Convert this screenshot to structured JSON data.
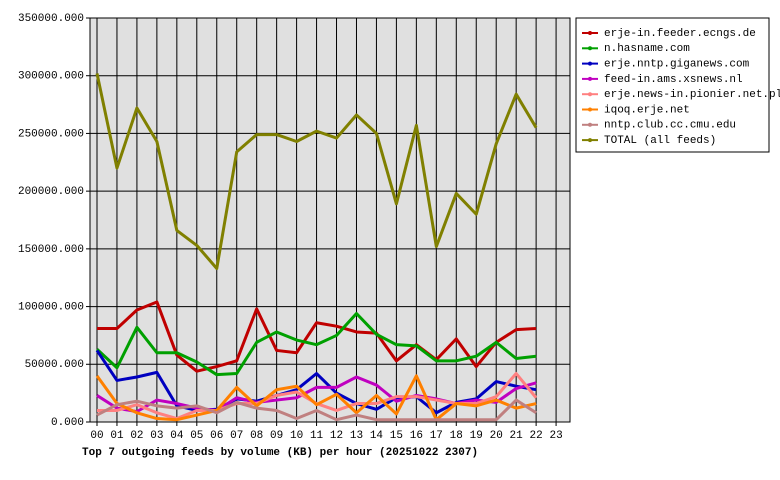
{
  "chart_data": {
    "type": "line",
    "title": "Top 7 outgoing feeds by volume (KB) per hour (20251022 2307)",
    "categories": [
      "00",
      "01",
      "02",
      "03",
      "04",
      "05",
      "06",
      "07",
      "08",
      "09",
      "10",
      "11",
      "12",
      "13",
      "14",
      "15",
      "16",
      "17",
      "18",
      "19",
      "20",
      "21",
      "22",
      "23"
    ],
    "ylim": [
      0,
      350000
    ],
    "yticks": [
      {
        "value": 0,
        "label": "0.000"
      },
      {
        "value": 50000,
        "label": "50000.000"
      },
      {
        "value": 100000,
        "label": "100000.000"
      },
      {
        "value": 150000,
        "label": "150000.000"
      },
      {
        "value": 200000,
        "label": "200000.000"
      },
      {
        "value": 250000,
        "label": "250000.000"
      },
      {
        "value": 300000,
        "label": "300000.000"
      },
      {
        "value": 350000,
        "label": "350000.000"
      }
    ],
    "grid": true,
    "legend": "right",
    "series": [
      {
        "name": "erje-in.feeder.ecngs.de",
        "color": "#c00000",
        "values": [
          81000,
          81000,
          97000,
          104000,
          58000,
          44000,
          48000,
          53000,
          98000,
          62000,
          60000,
          86000,
          83000,
          78000,
          77000,
          53000,
          67000,
          54000,
          72000,
          48000,
          69000,
          80000,
          81000,
          null
        ]
      },
      {
        "name": "n.hasname.com",
        "color": "#00a000",
        "values": [
          63000,
          47000,
          82000,
          60000,
          60000,
          52000,
          41000,
          42000,
          69000,
          78000,
          71000,
          67000,
          75000,
          94000,
          76000,
          67000,
          66000,
          53000,
          53000,
          57000,
          69000,
          55000,
          57000,
          null
        ]
      },
      {
        "name": "erje.nntp.giganews.com",
        "color": "#0000c0",
        "values": [
          62000,
          36000,
          39000,
          43000,
          14000,
          10000,
          11000,
          20000,
          18000,
          23000,
          28000,
          42000,
          25000,
          16000,
          11000,
          21000,
          22000,
          8000,
          17000,
          20000,
          35000,
          31000,
          28000,
          null
        ]
      },
      {
        "name": "feed-in.ams.xsnews.nl",
        "color": "#c000c0",
        "values": [
          23000,
          12000,
          9000,
          19000,
          16000,
          12000,
          10000,
          21000,
          17000,
          19000,
          21000,
          30000,
          30000,
          39000,
          32000,
          18000,
          23000,
          20000,
          16000,
          19000,
          17000,
          29000,
          34000,
          null
        ]
      },
      {
        "name": "erje.news-in.pionier.net.pl",
        "color": "#ff8080",
        "values": [
          10000,
          10000,
          15000,
          8000,
          3000,
          10000,
          10000,
          16000,
          16000,
          23000,
          26000,
          16000,
          10000,
          16000,
          16000,
          22000,
          22000,
          19000,
          16000,
          16000,
          22000,
          42000,
          21000,
          null
        ]
      },
      {
        "name": "iqoq.erje.net",
        "color": "#ff8000",
        "values": [
          40000,
          16000,
          8000,
          3000,
          2000,
          6000,
          10000,
          30000,
          14000,
          28000,
          31000,
          15000,
          24000,
          8000,
          23000,
          7000,
          40000,
          2000,
          16000,
          14000,
          19000,
          12000,
          16000,
          null
        ]
      },
      {
        "name": "nntp.club.cc.cmu.edu",
        "color": "#c08080",
        "values": [
          6000,
          15000,
          18000,
          14000,
          12000,
          14000,
          8000,
          17000,
          12000,
          10000,
          3000,
          10000,
          2000,
          6000,
          2000,
          2000,
          2000,
          2000,
          2000,
          2000,
          2000,
          19000,
          8000,
          null
        ]
      },
      {
        "name": "TOTAL (all feeds)",
        "color": "#808000",
        "values": [
          302000,
          220000,
          272000,
          243000,
          166000,
          153000,
          133000,
          234000,
          249000,
          249000,
          243000,
          252000,
          246000,
          266000,
          250000,
          189000,
          257000,
          152000,
          198000,
          180000,
          241000,
          284000,
          255000,
          null
        ]
      }
    ]
  }
}
